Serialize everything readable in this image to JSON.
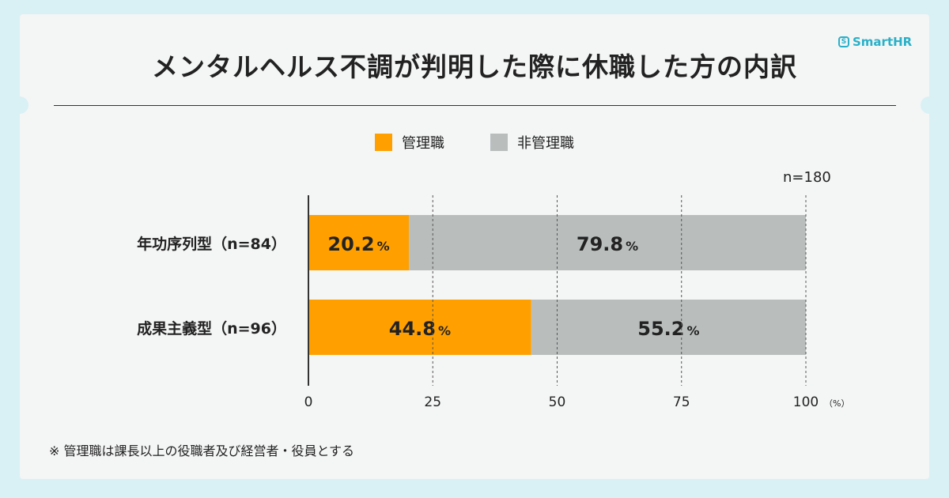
{
  "title": "メンタルヘルス不調が判明した際に休職した方の内訳",
  "brand": {
    "mark": "S",
    "name": "SmartHR",
    "color": "#2ab0c8"
  },
  "sample_size": "n=180",
  "footnote": "※ 管理職は課長以上の役職者及び経営者・役員とする",
  "colors": {
    "managers": "#ffa000",
    "non_managers": "#b9bebd",
    "background": "#d9f1f5",
    "card": "#f4f5f5"
  },
  "chart_data": {
    "type": "bar",
    "orientation": "horizontal",
    "stacked": true,
    "categories": [
      "年功序列型（n=84）",
      "成果主義型（n=96）"
    ],
    "series": [
      {
        "name": "管理職",
        "values": [
          20.2,
          44.8
        ]
      },
      {
        "name": "非管理職",
        "values": [
          79.8,
          55.2
        ]
      }
    ],
    "value_suffix": "%",
    "xlim": [
      0,
      100
    ],
    "x_ticks": [
      "0",
      "25",
      "50",
      "75",
      "100"
    ],
    "x_unit": "（%）",
    "grid": "dashed vertical",
    "legend_position": "top-center"
  }
}
